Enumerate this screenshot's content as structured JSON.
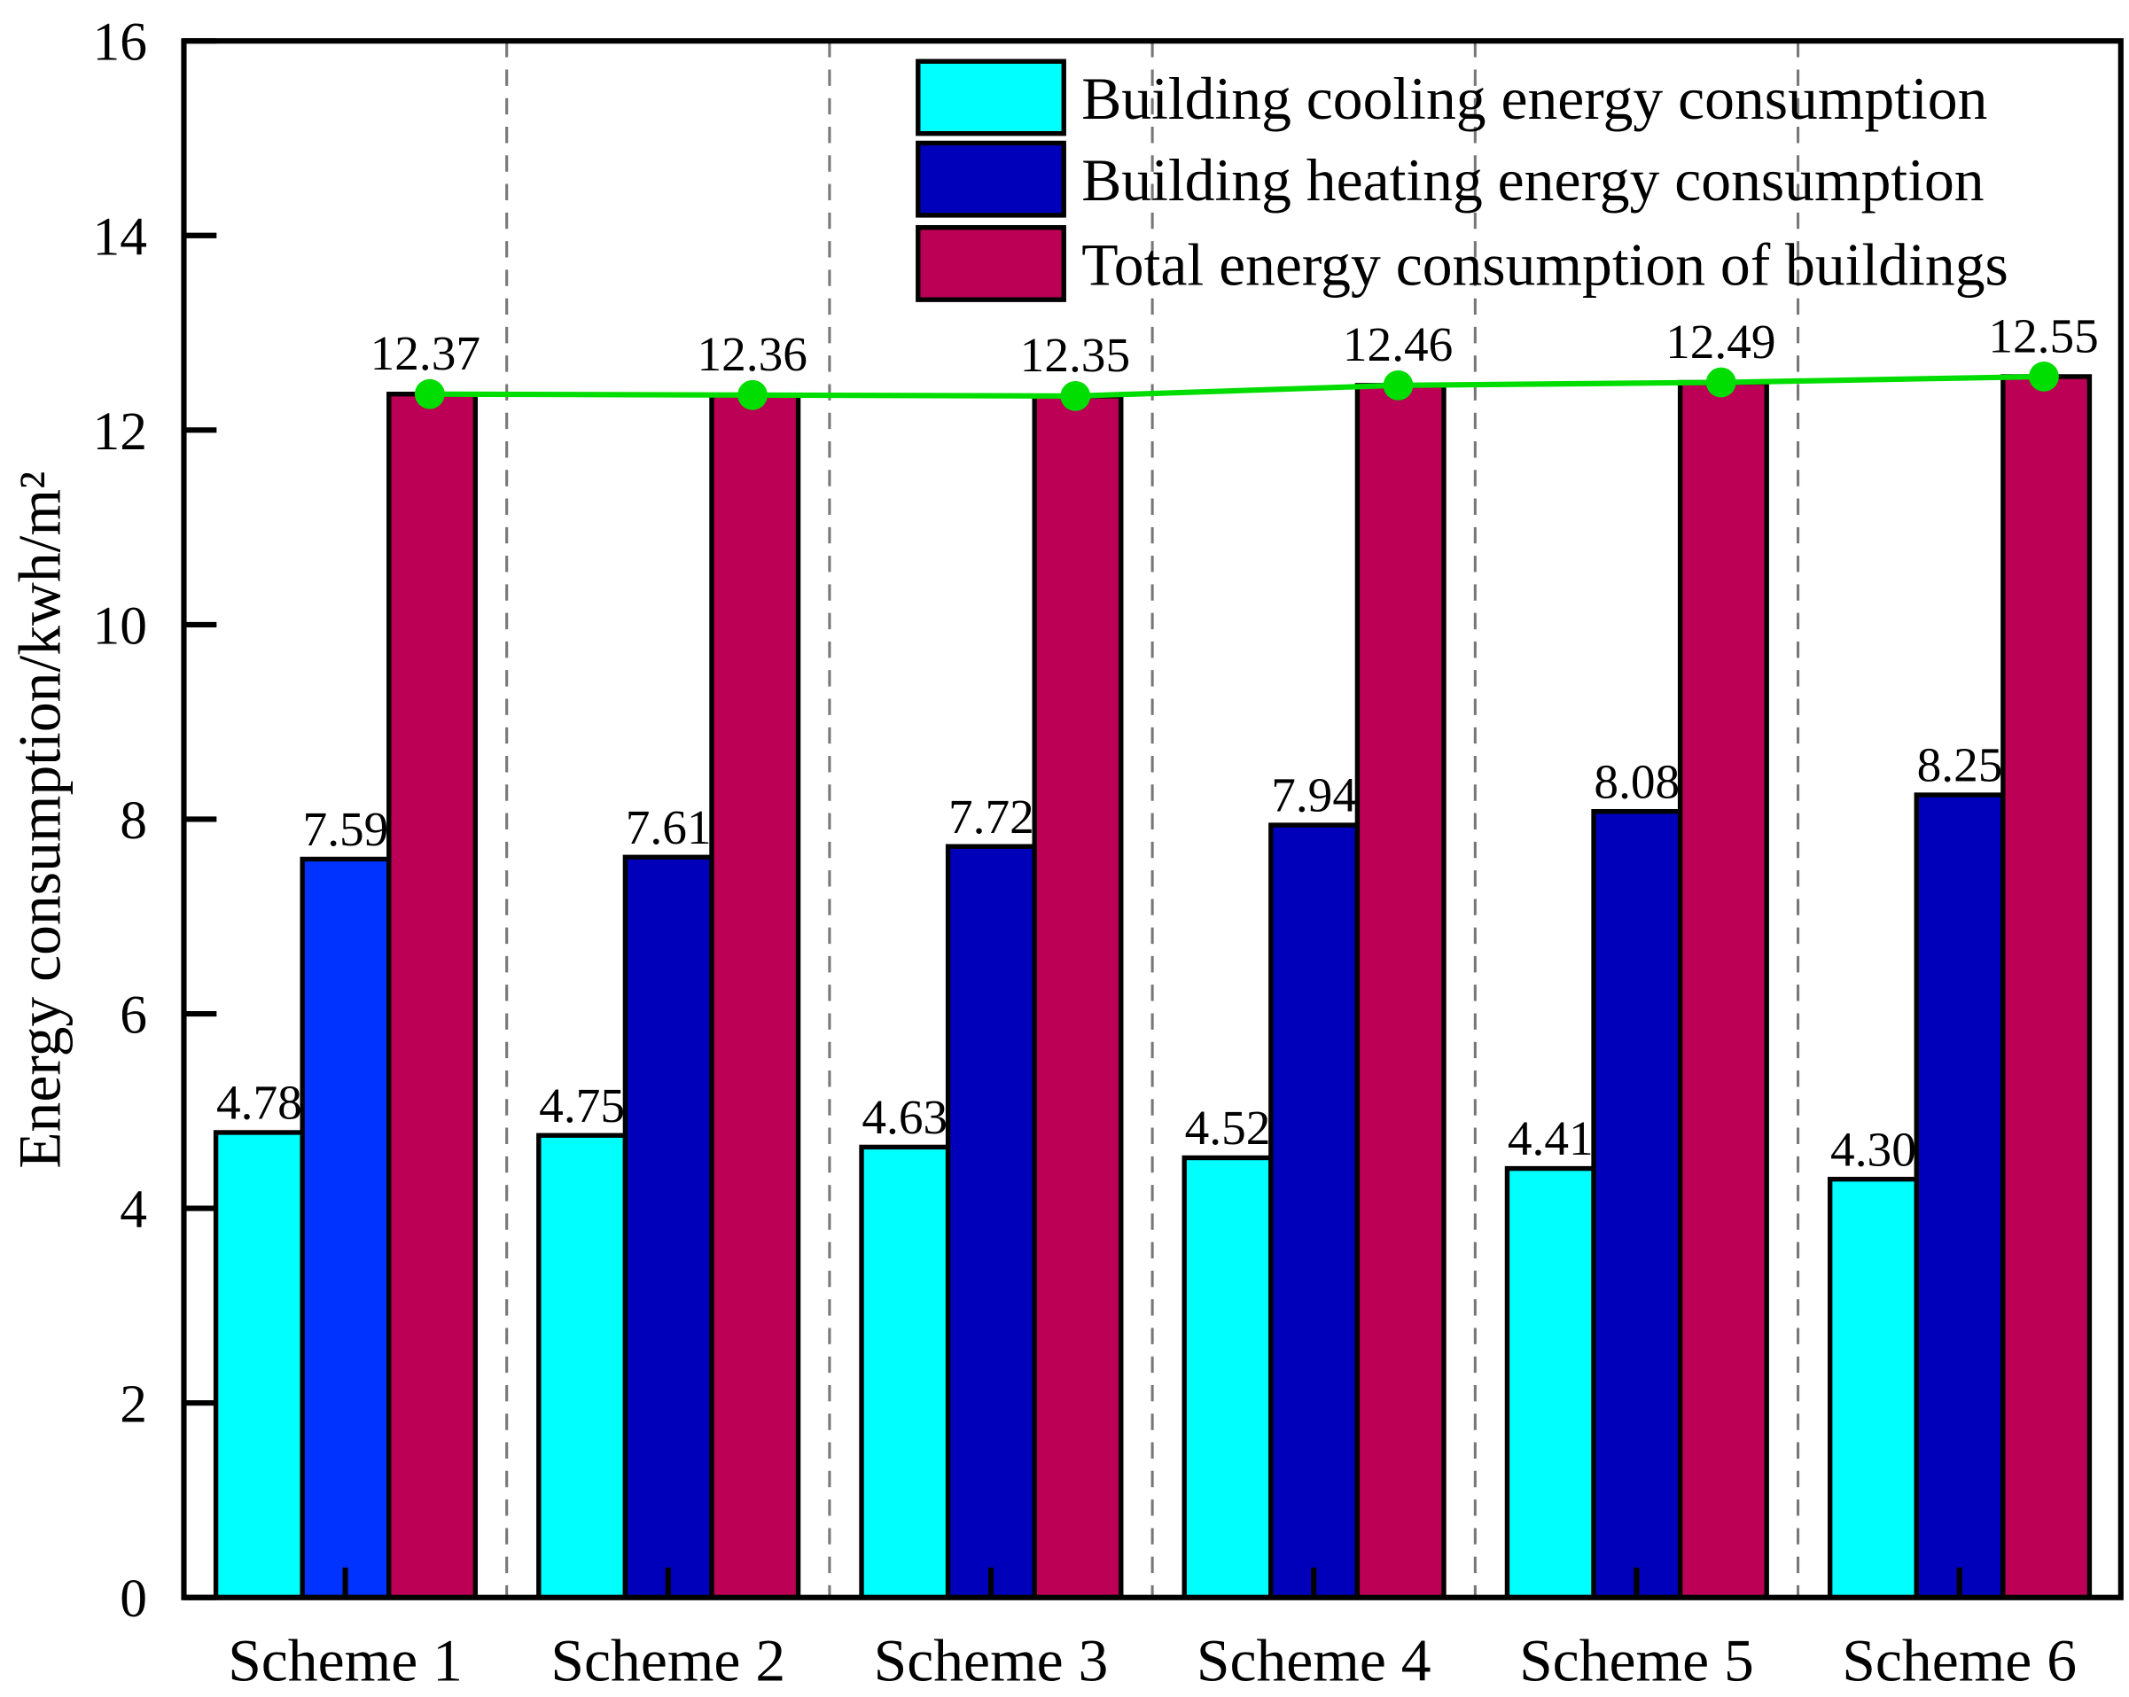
{
  "chart_data": {
    "type": "bar",
    "title": "",
    "xlabel": "",
    "ylabel": "Energy consumption/kwh/m²",
    "ylim": [
      0,
      16
    ],
    "yticks": [
      "0",
      "2",
      "4",
      "6",
      "8",
      "10",
      "12",
      "14",
      "16"
    ],
    "categories": [
      "Scheme 1",
      "Scheme 2",
      "Scheme 3",
      "Scheme 4",
      "Scheme 5",
      "Scheme 6"
    ],
    "series": [
      {
        "name": "Building cooling energy consumption",
        "color": "#00ffff",
        "values": [
          4.78,
          4.75,
          4.63,
          4.52,
          4.41,
          4.3
        ],
        "labels": [
          "4.78",
          "4.75",
          "4.63",
          "4.52",
          "4.41",
          "4.30"
        ]
      },
      {
        "name": "Building heating energy consumption",
        "color": "#0000bb",
        "first_color": "#0033ff",
        "values": [
          7.59,
          7.61,
          7.72,
          7.94,
          8.08,
          8.25
        ],
        "labels": [
          "7.59",
          "7.61",
          "7.72",
          "7.94",
          "8.08",
          "8.25"
        ]
      },
      {
        "name": "Total energy consumption of buildings",
        "color": "#bb0055",
        "values": [
          12.37,
          12.36,
          12.35,
          12.46,
          12.49,
          12.55
        ],
        "labels": [
          "12.37",
          "12.36",
          "12.35",
          "12.46",
          "12.49",
          "12.55"
        ]
      }
    ],
    "line": {
      "series": "Total energy consumption of buildings",
      "color": "#00dd00"
    },
    "legend_position": "top-right",
    "grid": false
  }
}
